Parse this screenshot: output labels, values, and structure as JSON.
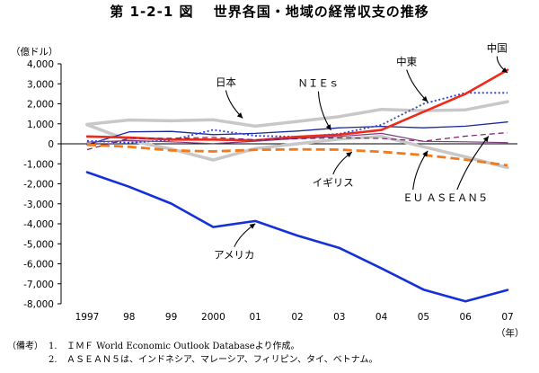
{
  "figure": {
    "title": "第 1-2-1 図　 世界各国・地域の経常収支の推移"
  },
  "chart_data": {
    "type": "line",
    "title": "",
    "ylabel": "（億ドル）",
    "xlabel": "（年）",
    "ylim": [
      -8000,
      4000
    ],
    "yticks": [
      4000,
      3000,
      2000,
      1000,
      0,
      -1000,
      -2000,
      -3000,
      -4000,
      -5000,
      -6000,
      -7000,
      -8000
    ],
    "ytick_labels": [
      "4,000",
      "3,000",
      "2,000",
      "1,000",
      "0",
      "-1,000",
      "-2,000",
      "-3,000",
      "-4,000",
      "-5,000",
      "-6,000",
      "-7,000",
      "-8,000"
    ],
    "x_labels": [
      "1997",
      "98",
      "99",
      "2000",
      "01",
      "02",
      "03",
      "04",
      "05",
      "06",
      "07"
    ],
    "grid": false,
    "legend": "none",
    "series": [
      {
        "name": "日本",
        "color": "#c8c8c8",
        "dash": "solid",
        "width": 3.5,
        "values": [
          970,
          1190,
          1150,
          1200,
          880,
          1120,
          1360,
          1720,
          1660,
          1700,
          2110
        ]
      },
      {
        "name": "",
        "color": "#c8c8c8",
        "dash": "solid",
        "width": 3.5,
        "values": [
          950,
          170,
          -260,
          -810,
          -240,
          0,
          240,
          370,
          -150,
          -650,
          -1190
        ]
      },
      {
        "name": "NIEs",
        "color": "#1a2a9a",
        "dash": "solid",
        "width": 1.3,
        "values": [
          -50,
          600,
          620,
          460,
          520,
          640,
          800,
          870,
          800,
          880,
          1090
        ]
      },
      {
        "name": "中東",
        "color": "#2b3fe0",
        "dash": "dotted",
        "width": 1.8,
        "values": [
          150,
          60,
          180,
          700,
          400,
          350,
          500,
          950,
          2000,
          2550,
          2550
        ]
      },
      {
        "name": "中国",
        "color": "#ee2a1a",
        "dash": "solid",
        "width": 2.6,
        "values": [
          370,
          310,
          210,
          210,
          170,
          350,
          460,
          690,
          1600,
          2500,
          3700
        ]
      },
      {
        "name": "EU",
        "color": "#7a3a7a",
        "dash": "solid",
        "width": 1.2,
        "values": [
          80,
          160,
          100,
          10,
          130,
          270,
          370,
          520,
          120,
          100,
          60
        ]
      },
      {
        "name": "ASEAN5",
        "color": "#7a1a6a",
        "dash": "dashed",
        "width": 1.2,
        "values": [
          -290,
          270,
          280,
          320,
          200,
          250,
          300,
          270,
          130,
          380,
          560
        ]
      },
      {
        "name": "イギリス",
        "color": "#f07a20",
        "dash": "dashed-thick",
        "width": 2.8,
        "values": [
          -50,
          -150,
          -330,
          -380,
          -300,
          -280,
          -290,
          -400,
          -560,
          -790,
          -1080
        ]
      },
      {
        "name": "アメリカ",
        "color": "#1430d8",
        "dash": "solid",
        "width": 2.6,
        "values": [
          -1420,
          -2150,
          -2990,
          -4160,
          -3860,
          -4590,
          -5210,
          -6230,
          -7290,
          -7880,
          -7310
        ]
      }
    ],
    "annotations": [
      {
        "label": "日本",
        "series": "日本",
        "label_at": [
          3.3,
          2900
        ],
        "point_at": [
          3.7,
          1280
        ]
      },
      {
        "label": "ＮＩＥｓ",
        "series": "NIEs",
        "label_at": [
          5.5,
          2850
        ],
        "point_at": [
          5.8,
          680
        ]
      },
      {
        "label": "中東",
        "series": "中東",
        "label_at": [
          7.6,
          3930
        ],
        "point_at": [
          8.1,
          2100
        ]
      },
      {
        "label": "中国",
        "series": "中国",
        "label_at": [
          9.75,
          4600
        ],
        "point_at": [
          10.0,
          3550
        ]
      },
      {
        "label": "イギリス",
        "series": "イギリス",
        "label_at": [
          5.85,
          -2110
        ],
        "point_at": [
          6.3,
          -410
        ]
      },
      {
        "label": "ＥＵ",
        "series": "EU",
        "label_at": [
          7.75,
          -2880
        ],
        "point_at": [
          8.1,
          -350
        ]
      },
      {
        "label": "ＡＳＥＡＮ５",
        "series": "ASEAN5",
        "label_at": [
          8.8,
          -2880
        ],
        "point_at": [
          9.55,
          380
        ]
      },
      {
        "label": "アメリカ",
        "series": "アメリカ",
        "label_at": [
          3.5,
          -5740
        ],
        "point_at": [
          4.0,
          -3990
        ]
      }
    ]
  },
  "notes": {
    "prefix": "（備考）",
    "items": [
      {
        "num": "1.",
        "text": "ＩＭＦ World Economic Outlook Databaseより作成。"
      },
      {
        "num": "2.",
        "text": "ＡＳＥＡＮ５は、インドネシア、マレーシア、フィリピン、タイ、ベトナム。"
      }
    ]
  }
}
